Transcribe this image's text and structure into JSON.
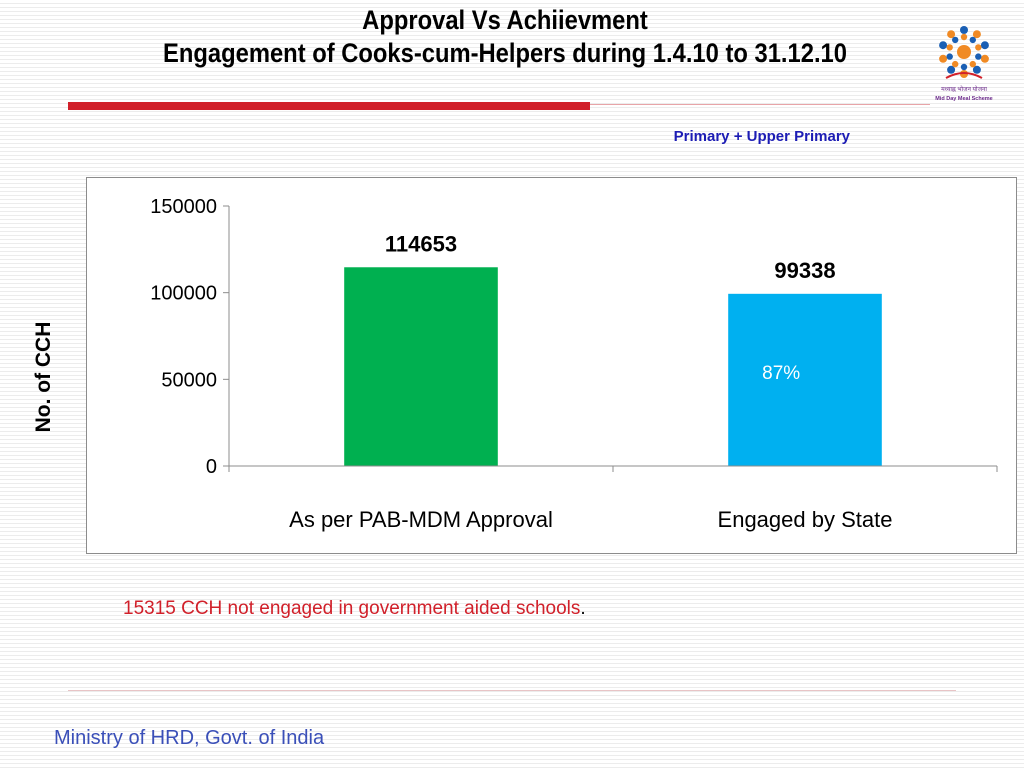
{
  "header": {
    "title_line1": "Approval Vs Achiievment",
    "title_line2": "Engagement  of Cooks-cum-Helpers  during 1.4.10 to 31.12.10",
    "subtitle": "Primary + Upper Primary",
    "logo_icon": "mid-day-meal-scheme-logo-icon",
    "logo_text_hindi": "मध्याह्न भोजन योजना",
    "logo_text": "Mid Day Meal Scheme"
  },
  "chart_data": {
    "type": "bar",
    "categories": [
      "As per PAB-MDM Approval",
      "Engaged by State"
    ],
    "values": [
      114653,
      99338
    ],
    "data_labels": [
      "114653",
      "99338"
    ],
    "colors": [
      "#00b050",
      "#00b0f0"
    ],
    "ylabel": "No. of CCH",
    "xlabel": "",
    "ylim": [
      0,
      150000
    ],
    "yticks": [
      0,
      50000,
      100000,
      150000
    ],
    "ytick_labels": [
      "0",
      "50000",
      "100000",
      "150000"
    ],
    "annotation": "87%",
    "annotation_color": "#1c1cff",
    "grid": false,
    "legend": "none"
  },
  "note": {
    "text": "15315 CCH not engaged  in government aided schools",
    "suffix": ".",
    "color": "#d1202a"
  },
  "footer": {
    "text": "Ministry of HRD, Govt. of India"
  }
}
